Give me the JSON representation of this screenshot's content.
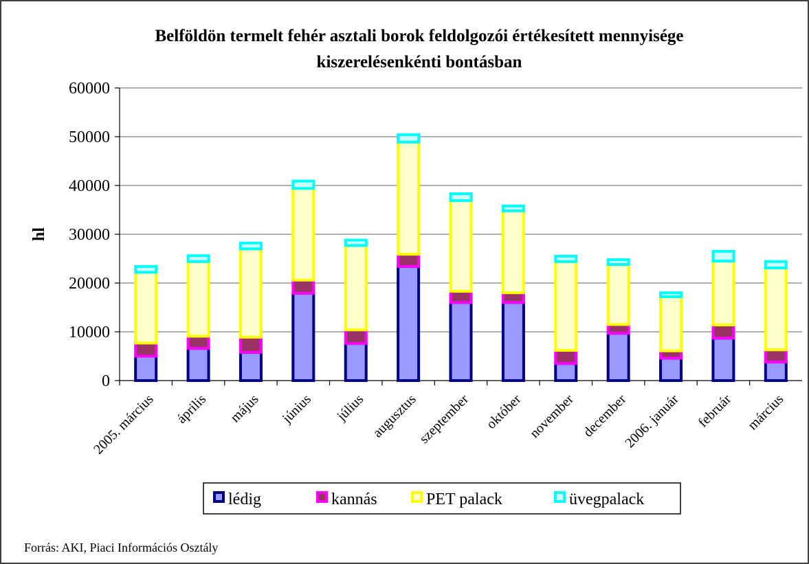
{
  "chart_data": {
    "type": "stacked_bar",
    "title": [
      "Belföldön termelt fehér asztali borok feldolgozói értékesített mennyisége",
      "kiszerelésenkénti bontásban"
    ],
    "y_label": "hl",
    "categories": [
      "2005. március",
      "április",
      "május",
      "június",
      "július",
      "augusztus",
      "szeptember",
      "október",
      "november",
      "december",
      "2006. január",
      "február",
      "március"
    ],
    "series": [
      {
        "name": "lédig",
        "color": "#9999ff",
        "stroke": "#000080",
        "values": [
          5000,
          6600,
          5800,
          17900,
          7600,
          23400,
          16000,
          16000,
          3500,
          9700,
          4600,
          8700,
          3800
        ]
      },
      {
        "name": "kannás",
        "color": "#993366",
        "stroke": "#ff00ff",
        "values": [
          2700,
          2500,
          3100,
          2700,
          2800,
          2500,
          2300,
          2000,
          2700,
          1800,
          1500,
          2700,
          2500
        ]
      },
      {
        "name": "PET palack",
        "color": "#ffffcc",
        "stroke": "#ffff00",
        "values": [
          14500,
          15300,
          18100,
          18800,
          17300,
          23000,
          18600,
          16800,
          18200,
          12300,
          11100,
          13100,
          16800
        ]
      },
      {
        "name": "üvegpalack",
        "color": "#ccffff",
        "stroke": "#00ffff",
        "values": [
          1200,
          1200,
          1200,
          1500,
          1100,
          1500,
          1400,
          1000,
          1100,
          1000,
          800,
          2000,
          1300
        ]
      }
    ],
    "ylim": [
      0,
      60000
    ],
    "yticks": [
      0,
      10000,
      20000,
      30000,
      40000,
      50000,
      60000
    ],
    "grid": true,
    "source": "Forrás: AKI, Piaci Információs Osztály"
  }
}
